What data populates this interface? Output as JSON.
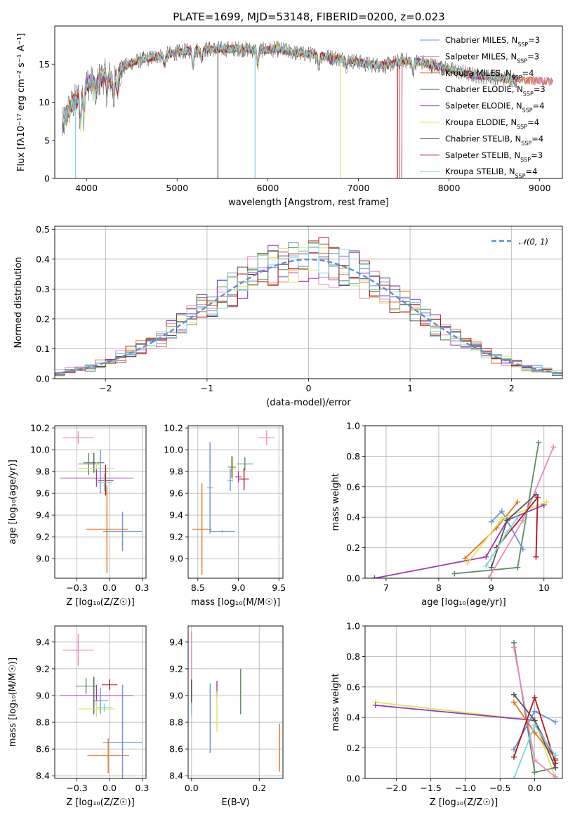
{
  "figure_title": "PLATE=1699, MJD=53148, FIBERID=0200, z=0.023",
  "colors": {
    "chabrier_miles": "#6f93d4",
    "salpeter_miles": "#e78ac3",
    "kroupa_miles": "#e0761f",
    "chabrier_elodie": "#5a8f63",
    "salpeter_elodie": "#9a3bb5",
    "kroupa_elodie": "#dde35a",
    "chabrier_stelib": "#555555",
    "salpeter_stelib": "#b0171f",
    "kroupa_stelib": "#7ad6dd"
  },
  "chart_data": [
    {
      "id": "spectrum",
      "type": "line",
      "title": "PLATE=1699, MJD=53148, FIBERID=0200, z=0.023",
      "xlabel": "wavelength [Angstrom, rest frame]",
      "ylabel": "Flux [f_λ10^-17 erg cm^-2 s^-1 A^-1]",
      "xlim": [
        3650,
        9250
      ],
      "ylim": [
        0,
        20
      ],
      "xticks": [
        4000,
        5000,
        6000,
        7000,
        8000,
        9000
      ],
      "yticks": [
        0,
        5,
        10,
        15
      ],
      "legend": "upper right",
      "legend_entries": [
        {
          "key": "chabrier_miles",
          "label": "Chabrier MILES, N_SSP=3"
        },
        {
          "key": "salpeter_miles",
          "label": "Salpeter MILES, N_SSP=3"
        },
        {
          "key": "kroupa_miles",
          "label": "Kroupa MILES, N_SSP=4"
        },
        {
          "key": "chabrier_elodie",
          "label": "Chabrier ELODIE, N_SSP=3"
        },
        {
          "key": "salpeter_elodie",
          "label": "Salpeter ELODIE, N_SSP=4"
        },
        {
          "key": "kroupa_elodie",
          "label": "Kroupa ELODIE, N_SSP=4"
        },
        {
          "key": "chabrier_stelib",
          "label": "Chabrier STELIB, N_SSP=4"
        },
        {
          "key": "salpeter_stelib",
          "label": "Salpeter STELIB, N_SSP=3"
        },
        {
          "key": "kroupa_stelib",
          "label": "Kroupa STELIB, N_SSP=4"
        }
      ],
      "continuum": {
        "x": [
          3700,
          3800,
          3900,
          4000,
          4100,
          4200,
          4300,
          4400,
          4500,
          4700,
          4900,
          5100,
          5300,
          5500,
          5700,
          5900,
          6100,
          6300,
          6500,
          6700,
          6900,
          7100,
          7300,
          7500,
          7700,
          7900,
          8100,
          8300,
          8500,
          8700,
          9000,
          9200
        ],
        "y": [
          5.5,
          9.0,
          10.5,
          12.5,
          12.5,
          13.5,
          13.0,
          14.5,
          15.2,
          15.8,
          16.3,
          16.7,
          16.9,
          17.0,
          17.0,
          16.8,
          17.0,
          16.5,
          16.2,
          15.9,
          15.5,
          15.0,
          14.8,
          15.5,
          15.2,
          14.6,
          14.0,
          13.5,
          13.3,
          13.0,
          12.8,
          12.7
        ]
      },
      "dropouts": [
        {
          "key": "kroupa_stelib",
          "x": 5860
        },
        {
          "key": "kroupa_elodie",
          "x": 6800
        },
        {
          "key": "salpeter_stelib",
          "x": 7430
        },
        {
          "key": "chabrier_stelib",
          "x": 5450
        },
        {
          "key": "kroupa_stelib",
          "x": 3880
        }
      ]
    },
    {
      "id": "residuals",
      "type": "step",
      "xlabel": "(data-model)/error",
      "ylabel": "Normed distribution",
      "xlim": [
        -2.5,
        2.5
      ],
      "ylim": [
        0,
        0.51
      ],
      "xticks": [
        -2,
        -1,
        0,
        1,
        2
      ],
      "yticks": [
        0.0,
        0.1,
        0.2,
        0.3,
        0.4,
        0.5
      ],
      "grid": true,
      "legend": "upper right",
      "legend_entries": [
        {
          "label": "𝒩(0, 1)",
          "style": "dashed"
        }
      ],
      "bin_width": 0.1,
      "reference": "gaussian mean 0 sigma 1"
    },
    {
      "id": "age_vs_Z",
      "type": "errorbar",
      "xlabel": "Z [log₁₀(Z/Z☉)]",
      "ylabel": "age  [log₁₀(age/yr)]",
      "xlim": [
        -0.42,
        0.28
      ],
      "ylim": [
        8.82,
        10.22
      ],
      "xticks": [
        -0.25,
        0.0,
        0.25
      ],
      "yticks": [
        9.0,
        9.2,
        9.4,
        9.6,
        9.8,
        10.0,
        10.2
      ],
      "grid": true,
      "points": [
        {
          "key": "salpeter_miles",
          "x": -0.24,
          "xerr": 0.12,
          "y": 10.11,
          "yerr": 0.06
        },
        {
          "key": "chabrier_stelib",
          "x": -0.12,
          "xerr": 0.08,
          "y": 9.88,
          "yerr": 0.09
        },
        {
          "key": "chabrier_elodie",
          "x": -0.16,
          "xerr": 0.08,
          "y": 9.87,
          "yerr": 0.1
        },
        {
          "key": "kroupa_elodie",
          "x": -0.1,
          "xerr": 0.14,
          "y": 9.83,
          "yerr": 0.06
        },
        {
          "key": "chabrier_miles",
          "x": -0.07,
          "xerr": 0.06,
          "y": 9.8,
          "yerr": 0.2
        },
        {
          "key": "salpeter_elodie",
          "x": -0.1,
          "xerr": 0.28,
          "y": 9.74,
          "yerr": 0.08
        },
        {
          "key": "salpeter_stelib",
          "x": -0.03,
          "xerr": 0.06,
          "y": 9.72,
          "yerr": 0.14
        },
        {
          "key": "kroupa_stelib",
          "x": -0.04,
          "xerr": 0.06,
          "y": 9.7,
          "yerr": 0.08
        },
        {
          "key": "kroupa_miles",
          "x": -0.02,
          "xerr": 0.16,
          "y": 9.27,
          "yerr": 0.4
        },
        {
          "key": "chabrier_miles",
          "x": 0.1,
          "xerr": 0.15,
          "y": 9.25,
          "yerr": 0.18
        }
      ]
    },
    {
      "id": "age_vs_mass",
      "type": "errorbar",
      "xlabel": "mass [log₁₀(M/M☉)]",
      "ylabel": "",
      "xlim": [
        8.38,
        9.55
      ],
      "ylim": [
        8.82,
        10.22
      ],
      "xticks": [
        8.5,
        9.0,
        9.5
      ],
      "yticks": [
        9.0,
        9.2,
        9.4,
        9.6,
        9.8,
        10.0,
        10.2
      ],
      "grid": true,
      "points": [
        {
          "key": "salpeter_miles",
          "x": 9.35,
          "xerr": 0.1,
          "y": 10.11,
          "yerr": 0.07
        },
        {
          "key": "chabrier_elodie",
          "x": 9.08,
          "xerr": 0.1,
          "y": 9.87,
          "yerr": 0.06
        },
        {
          "key": "kroupa_elodie",
          "x": 8.93,
          "xerr": 0.05,
          "y": 9.82,
          "yerr": 0.12
        },
        {
          "key": "chabrier_stelib",
          "x": 8.92,
          "xerr": 0.05,
          "y": 9.84,
          "yerr": 0.1
        },
        {
          "key": "salpeter_elodie",
          "x": 9.0,
          "xerr": 0.04,
          "y": 9.75,
          "yerr": 0.05
        },
        {
          "key": "salpeter_stelib",
          "x": 9.07,
          "xerr": 0.06,
          "y": 9.73,
          "yerr": 0.1
        },
        {
          "key": "chabrier_miles",
          "x": 8.9,
          "xerr": 0.03,
          "y": 9.72,
          "yerr": 0.1
        },
        {
          "key": "kroupa_miles",
          "x": 8.55,
          "xerr": 0.12,
          "y": 9.27,
          "yerr": 0.42
        },
        {
          "key": "chabrier_miles",
          "x": 8.65,
          "xerr": 0.04,
          "y": 9.65,
          "yerr": 0.42
        },
        {
          "key": "chabrier_miles",
          "x": 8.8,
          "xerr": 0.16,
          "y": 9.25,
          "yerr": 0.01
        }
      ]
    },
    {
      "id": "massweight_vs_age",
      "type": "line",
      "xlabel": "age  [log₁₀(age/yr)]",
      "ylabel": "mass weight",
      "xlim": [
        6.6,
        10.35
      ],
      "ylim": [
        0,
        1.0
      ],
      "xticks": [
        7,
        8,
        9,
        10
      ],
      "yticks": [
        0.0,
        0.2,
        0.4,
        0.6,
        0.8,
        1.0
      ],
      "grid": true,
      "series": [
        {
          "key": "salpeter_elodie",
          "x": [
            6.78,
            8.9,
            9.3,
            10.0
          ],
          "y": [
            0.0,
            0.14,
            0.38,
            0.48
          ]
        },
        {
          "key": "chabrier_elodie",
          "x": [
            8.3,
            9.5,
            9.9
          ],
          "y": [
            0.03,
            0.07,
            0.89
          ]
        },
        {
          "key": "salpeter_miles",
          "x": [
            8.95,
            9.6,
            10.18
          ],
          "y": [
            0.0,
            0.38,
            0.86
          ]
        },
        {
          "key": "chabrier_miles",
          "x": [
            9.0,
            9.2,
            9.6
          ],
          "y": [
            0.37,
            0.44,
            0.19
          ]
        },
        {
          "key": "kroupa_miles",
          "x": [
            8.5,
            9.1,
            9.5
          ],
          "y": [
            0.13,
            0.33,
            0.5
          ]
        },
        {
          "key": "kroupa_elodie",
          "x": [
            8.55,
            9.2,
            10.05
          ],
          "y": [
            0.1,
            0.39,
            0.5
          ]
        },
        {
          "key": "salpeter_stelib",
          "x": [
            9.1,
            9.88,
            9.85
          ],
          "y": [
            0.2,
            0.53,
            0.14
          ]
        },
        {
          "key": "chabrier_stelib",
          "x": [
            9.0,
            9.3,
            9.85
          ],
          "y": [
            0.07,
            0.38,
            0.55
          ]
        },
        {
          "key": "kroupa_stelib",
          "x": [
            8.9,
            9.3,
            9.5
          ],
          "y": [
            0.08,
            0.3,
            0.4
          ]
        }
      ]
    },
    {
      "id": "mass_vs_Z",
      "type": "errorbar",
      "xlabel": "Z [log₁₀(Z/Z☉)]",
      "ylabel": "mass [log₁₀(M/M☉)]",
      "xlim": [
        -0.42,
        0.28
      ],
      "ylim": [
        8.38,
        9.52
      ],
      "xticks": [
        -0.25,
        0.0,
        0.25
      ],
      "yticks": [
        8.4,
        8.6,
        8.8,
        9.0,
        9.2,
        9.4
      ],
      "grid": true,
      "points": [
        {
          "key": "salpeter_miles",
          "x": -0.24,
          "xerr": 0.12,
          "y": 9.34,
          "yerr": 0.12
        },
        {
          "key": "chabrier_elodie",
          "x": -0.18,
          "xerr": 0.08,
          "y": 9.07,
          "yerr": 0.06
        },
        {
          "key": "salpeter_stelib",
          "x": 0.0,
          "xerr": 0.06,
          "y": 9.08,
          "yerr": 0.04
        },
        {
          "key": "chabrier_stelib",
          "x": -0.12,
          "xerr": 0.08,
          "y": 9.0,
          "yerr": 0.14
        },
        {
          "key": "salpeter_elodie",
          "x": -0.1,
          "xerr": 0.28,
          "y": 9.0,
          "yerr": 0.08
        },
        {
          "key": "kroupa_elodie",
          "x": -0.1,
          "xerr": 0.14,
          "y": 8.9,
          "yerr": 0.06
        },
        {
          "key": "kroupa_stelib",
          "x": -0.04,
          "xerr": 0.06,
          "y": 8.91,
          "yerr": 0.03
        },
        {
          "key": "chabrier_miles",
          "x": -0.07,
          "xerr": 0.06,
          "y": 8.96,
          "yerr": 0.1
        },
        {
          "key": "chabrier_miles",
          "x": 0.1,
          "xerr": 0.15,
          "y": 8.65,
          "yerr": 0.43
        },
        {
          "key": "kroupa_miles",
          "x": -0.01,
          "xerr": 0.16,
          "y": 8.55,
          "yerr": 0.13
        }
      ]
    },
    {
      "id": "mass_vs_EBV",
      "type": "errorbar",
      "xlabel": "E(B-V)",
      "ylabel": "",
      "xlim": [
        -0.01,
        0.27
      ],
      "ylim": [
        8.38,
        9.52
      ],
      "xticks": [
        0.0,
        0.2
      ],
      "yticks": [
        8.4,
        8.6,
        8.8,
        9.0,
        9.2,
        9.4
      ],
      "grid": true,
      "points": [
        {
          "key": "salpeter_miles",
          "x": 0.0,
          "xerr": 0.0,
          "y": 9.3,
          "yerr": 0.18
        },
        {
          "key": "salpeter_stelib",
          "x": 0.0,
          "xerr": 0.0,
          "y": 9.02,
          "yerr": 0.1
        },
        {
          "key": "chabrier_stelib",
          "x": 0.0,
          "xerr": 0.0,
          "y": 8.98,
          "yerr": 0.13
        },
        {
          "key": "kroupa_stelib",
          "x": 0.0,
          "xerr": 0.0,
          "y": 8.9,
          "yerr": 0.05
        },
        {
          "key": "salpeter_elodie",
          "x": 0.075,
          "xerr": 0.0,
          "y": 9.05,
          "yerr": 0.06
        },
        {
          "key": "kroupa_elodie",
          "x": 0.075,
          "xerr": 0.0,
          "y": 8.88,
          "yerr": 0.15
        },
        {
          "key": "chabrier_miles",
          "x": 0.055,
          "xerr": 0.0,
          "y": 8.83,
          "yerr": 0.26
        },
        {
          "key": "chabrier_elodie",
          "x": 0.145,
          "xerr": 0.0,
          "y": 9.03,
          "yerr": 0.17
        },
        {
          "key": "kroupa_miles",
          "x": 0.26,
          "xerr": 0.0,
          "y": 8.61,
          "yerr": 0.18
        }
      ]
    },
    {
      "id": "massweight_vs_Z",
      "type": "line",
      "xlabel": "Z [log₁₀(Z/Z☉)]",
      "ylabel": "mass weight",
      "xlim": [
        -2.45,
        0.4
      ],
      "ylim": [
        0,
        1.0
      ],
      "xticks": [
        -2.0,
        -1.5,
        -1.0,
        -0.5,
        0.0
      ],
      "yticks": [
        0.0,
        0.2,
        0.4,
        0.6,
        0.8,
        1.0
      ],
      "grid": true,
      "series": [
        {
          "key": "kroupa_elodie",
          "x": [
            -2.3,
            0.0,
            0.3
          ],
          "y": [
            0.5,
            0.38,
            0.0
          ]
        },
        {
          "key": "salpeter_elodie",
          "x": [
            -2.3,
            0.0,
            0.3
          ],
          "y": [
            0.48,
            0.38,
            0.12
          ]
        },
        {
          "key": "chabrier_elodie",
          "x": [
            -0.3,
            0.0,
            0.3
          ],
          "y": [
            0.89,
            0.04,
            0.07
          ]
        },
        {
          "key": "salpeter_miles",
          "x": [
            -0.3,
            0.0,
            0.3
          ],
          "y": [
            0.86,
            0.12,
            0.01
          ]
        },
        {
          "key": "chabrier_miles",
          "x": [
            -0.3,
            0.0,
            0.3
          ],
          "y": [
            0.19,
            0.44,
            0.37
          ]
        },
        {
          "key": "kroupa_miles",
          "x": [
            -0.3,
            0.0,
            0.3
          ],
          "y": [
            0.5,
            0.3,
            0.13
          ]
        },
        {
          "key": "salpeter_stelib",
          "x": [
            -0.3,
            0.0,
            0.3
          ],
          "y": [
            0.14,
            0.53,
            0.1
          ]
        },
        {
          "key": "chabrier_stelib",
          "x": [
            -0.3,
            0.0,
            0.3
          ],
          "y": [
            0.55,
            0.38,
            0.07
          ]
        },
        {
          "key": "kroupa_stelib",
          "x": [
            -0.3,
            0.0,
            0.3
          ],
          "y": [
            0.0,
            0.35,
            0.15
          ]
        }
      ]
    }
  ]
}
